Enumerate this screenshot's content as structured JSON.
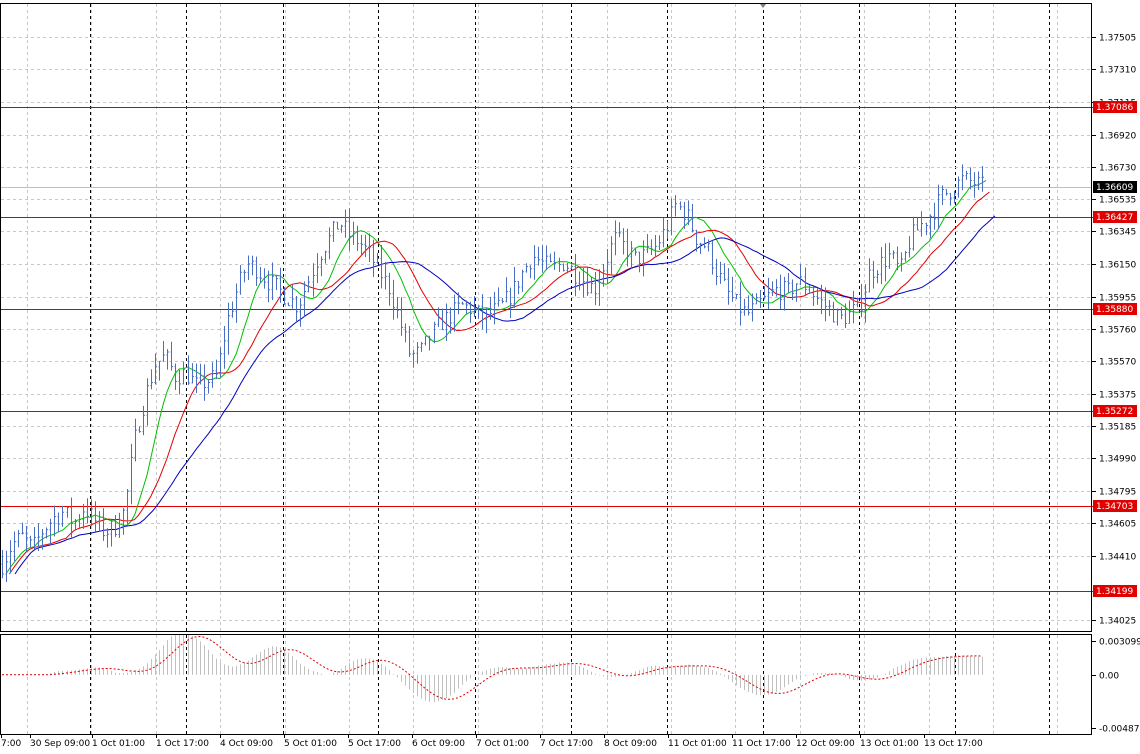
{
  "colors": {
    "background": "#ffffff",
    "frame": "#000000",
    "grid": "#c8c8c8",
    "candle": "#4a6fc0",
    "level_line": "#e00000",
    "level_tag": "#e00000",
    "current_tag": "#000000",
    "ma_fast": "#00c000",
    "ma_mid": "#e00000",
    "ma_slow": "#0000c0",
    "oscillator_bars": "#c0c0c0",
    "oscillator_signal": "#e00000"
  },
  "chart_data": [
    {
      "type": "candlestick",
      "title": "",
      "ylim": [
        1.3396,
        1.377
      ],
      "y_ticks": [
        "1.37505",
        "1.37310",
        "1.37115",
        "1.36920",
        "1.36730",
        "1.36535",
        "1.36345",
        "1.36150",
        "1.35955",
        "1.35760",
        "1.35570",
        "1.35375",
        "1.35185",
        "1.34990",
        "1.34795",
        "1.34605",
        "1.34410",
        "1.34025"
      ],
      "y_tick_values": [
        1.37505,
        1.3731,
        1.37115,
        1.3692,
        1.3673,
        1.36535,
        1.36345,
        1.3615,
        1.35955,
        1.3576,
        1.3557,
        1.35375,
        1.35185,
        1.3499,
        1.34795,
        1.34605,
        1.3441,
        1.34025
      ],
      "x_ticks": [
        "7:00",
        "30 Sep 09:00",
        "1 Oct 01:00",
        "1 Oct 17:00",
        "4 Oct 09:00",
        "5 Oct 01:00",
        "5 Oct 17:00",
        "6 Oct 09:00",
        "7 Oct 01:00",
        "7 Oct 17:00",
        "8 Oct 09:00",
        "11 Oct 01:00",
        "11 Oct 17:00",
        "12 Oct 09:00",
        "13 Oct 01:00",
        "13 Oct 17:00"
      ],
      "horizontal_levels": [
        "1.37086",
        "1.36427",
        "1.35880",
        "1.35272",
        "1.34703",
        "1.34199"
      ],
      "horizontal_level_values": [
        1.37086,
        1.36427,
        1.3588,
        1.35272,
        1.34703,
        1.34199
      ],
      "current_price": "1.36609",
      "current_price_value": 1.36609,
      "close_path": [
        [
          0,
          1.3436
        ],
        [
          1,
          1.3448
        ],
        [
          2,
          1.3452
        ],
        [
          3,
          1.3445
        ],
        [
          4,
          1.3456
        ],
        [
          5,
          1.3463
        ],
        [
          6,
          1.3467
        ],
        [
          7,
          1.346
        ],
        [
          8,
          1.347
        ],
        [
          9,
          1.3462
        ],
        [
          10,
          1.3455
        ],
        [
          11,
          1.3458
        ],
        [
          12,
          1.3468
        ],
        [
          13,
          1.351
        ],
        [
          14,
          1.3535
        ],
        [
          15,
          1.3555
        ],
        [
          16,
          1.356
        ],
        [
          17,
          1.3548
        ],
        [
          18,
          1.355
        ],
        [
          19,
          1.3542
        ],
        [
          20,
          1.3545
        ],
        [
          21,
          1.3548
        ],
        [
          22,
          1.358
        ],
        [
          23,
          1.36
        ],
        [
          24,
          1.3615
        ],
        [
          25,
          1.3612
        ],
        [
          26,
          1.3605
        ],
        [
          27,
          1.36
        ],
        [
          28,
          1.3595
        ],
        [
          29,
          1.359
        ],
        [
          30,
          1.3605
        ],
        [
          31,
          1.362
        ],
        [
          32,
          1.363
        ],
        [
          33,
          1.364
        ],
        [
          34,
          1.3632
        ],
        [
          35,
          1.3628
        ],
        [
          36,
          1.362
        ],
        [
          37,
          1.361
        ],
        [
          38,
          1.36
        ],
        [
          39,
          1.358
        ],
        [
          40,
          1.356
        ],
        [
          41,
          1.3562
        ],
        [
          42,
          1.3572
        ],
        [
          43,
          1.358
        ],
        [
          44,
          1.3585
        ],
        [
          45,
          1.359
        ],
        [
          46,
          1.3588
        ],
        [
          47,
          1.3583
        ],
        [
          48,
          1.3586
        ],
        [
          49,
          1.359
        ],
        [
          50,
          1.3598
        ],
        [
          51,
          1.361
        ],
        [
          52,
          1.362
        ],
        [
          53,
          1.3615
        ],
        [
          54,
          1.3612
        ],
        [
          55,
          1.3616
        ],
        [
          56,
          1.361
        ],
        [
          57,
          1.3605
        ],
        [
          58,
          1.36
        ],
        [
          59,
          1.3615
        ],
        [
          60,
          1.363
        ],
        [
          61,
          1.3625
        ],
        [
          62,
          1.3618
        ],
        [
          63,
          1.362
        ],
        [
          64,
          1.3625
        ],
        [
          65,
          1.3635
        ],
        [
          66,
          1.365
        ],
        [
          67,
          1.3645
        ],
        [
          68,
          1.363
        ],
        [
          69,
          1.3625
        ],
        [
          70,
          1.361
        ],
        [
          71,
          1.3598
        ],
        [
          72,
          1.359
        ],
        [
          73,
          1.3585
        ],
        [
          74,
          1.359
        ],
        [
          75,
          1.3595
        ],
        [
          76,
          1.36
        ],
        [
          77,
          1.3598
        ],
        [
          78,
          1.3605
        ],
        [
          79,
          1.36
        ],
        [
          80,
          1.3593
        ],
        [
          81,
          1.3588
        ],
        [
          82,
          1.3582
        ],
        [
          83,
          1.3585
        ],
        [
          84,
          1.359
        ],
        [
          85,
          1.361
        ],
        [
          86,
          1.3615
        ],
        [
          87,
          1.362
        ],
        [
          88,
          1.361
        ],
        [
          89,
          1.363
        ],
        [
          90,
          1.3638
        ],
        [
          91,
          1.3645
        ],
        [
          92,
          1.3655
        ],
        [
          93,
          1.366
        ],
        [
          94,
          1.3665
        ],
        [
          95,
          1.3664
        ],
        [
          96,
          1.3661
        ]
      ]
    },
    {
      "type": "histogram",
      "title": "",
      "y_ticks": [
        "0.003099",
        "0.00",
        "-0.00487"
      ],
      "y_tick_values": [
        0.003099,
        0.0,
        -0.00487
      ],
      "ylim": [
        -0.00487,
        0.003099
      ]
    }
  ]
}
